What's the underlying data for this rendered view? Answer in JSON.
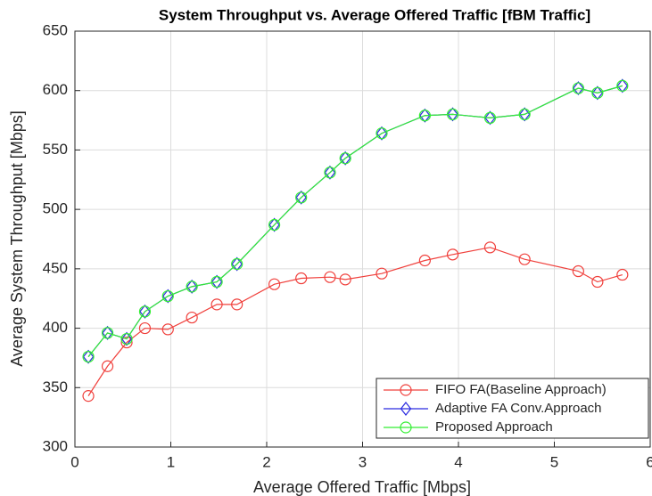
{
  "chart_data": {
    "type": "line",
    "title": "System Throughput vs. Average Offered Traffic [fBM Traffic]",
    "x_label": "Average Offered Traffic [Mbps]",
    "y_label": "Average System Throughput [Mbps]",
    "x": [
      0.14,
      0.34,
      0.54,
      0.73,
      0.97,
      1.22,
      1.48,
      1.69,
      2.08,
      2.36,
      2.66,
      2.82,
      3.2,
      3.65,
      3.94,
      4.33,
      4.69,
      5.25,
      5.45,
      5.71
    ],
    "series": [
      {
        "name": "FIFO FA(Baseline Approach)",
        "color": "#f0403c",
        "marker": "circle",
        "values": [
          343,
          368,
          388,
          400,
          399,
          409,
          420,
          420,
          437,
          442,
          443,
          441,
          446,
          457,
          462,
          468,
          458,
          448,
          439,
          445
        ]
      },
      {
        "name": "Adaptive FA Conv.Approach",
        "color": "#2a2ae0",
        "marker": "diamond",
        "values": [
          376,
          396,
          391,
          414,
          427,
          435,
          439,
          454,
          487,
          510,
          531,
          543,
          564,
          579,
          580,
          577,
          580,
          602,
          598,
          604
        ]
      },
      {
        "name": "Proposed Approach",
        "color": "#33ee33",
        "marker": "circle",
        "values": [
          376,
          396,
          391,
          414,
          427,
          435,
          439,
          454,
          487,
          510,
          531,
          543,
          564,
          579,
          580,
          577,
          580,
          602,
          598,
          604
        ]
      }
    ],
    "xlim": [
      0,
      6
    ],
    "xticks": [
      0,
      1,
      2,
      3,
      4,
      5,
      6
    ],
    "ylim": [
      300,
      650
    ],
    "yticks": [
      300,
      350,
      400,
      450,
      500,
      550,
      600,
      650
    ],
    "grid": true,
    "legend": "lower right"
  }
}
